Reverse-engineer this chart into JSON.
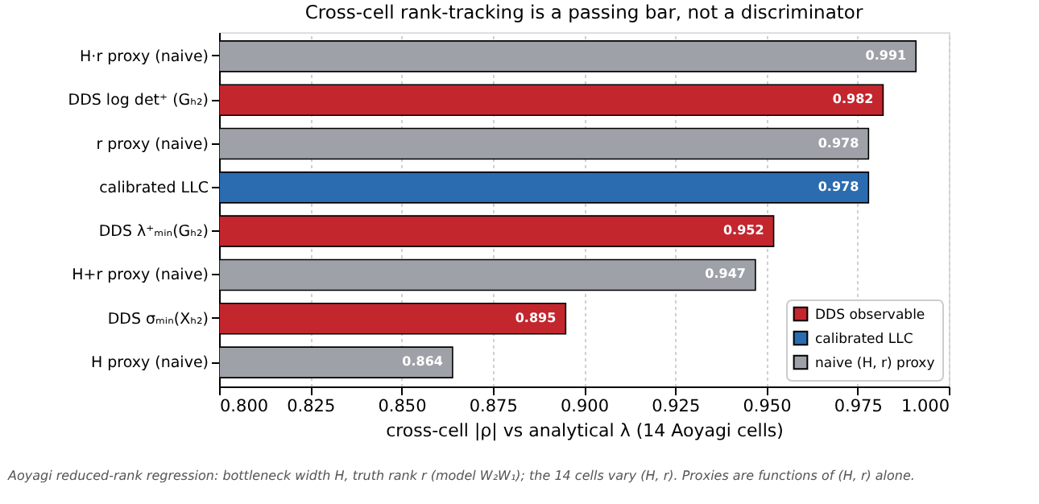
{
  "chart_data": {
    "type": "bar",
    "orientation": "horizontal",
    "title": "Cross-cell rank-tracking is a passing bar, not a discriminator",
    "xlabel": "cross-cell |ρ| vs analytical λ  (14 Aoyagi cells)",
    "categories": [
      "H·r proxy (naive)",
      "DDS log det⁺ (Gₕ₂)",
      "r proxy (naive)",
      "calibrated LLC",
      "DDS λ⁺ₘᵢₙ(Gₕ₂)",
      "H+r proxy (naive)",
      "DDS σₘᵢₙ(Xₕ₂)",
      "H proxy (naive)"
    ],
    "series": [
      {
        "name": "DDS observable",
        "color": "#c4262e",
        "values": [
          null,
          0.982,
          null,
          null,
          0.952,
          null,
          0.895,
          null
        ]
      },
      {
        "name": "calibrated LLC",
        "color": "#2b6cb0",
        "values": [
          null,
          null,
          null,
          0.978,
          null,
          null,
          null,
          null
        ]
      },
      {
        "name": "naive (H, r) proxy",
        "color": "#9ea2a8",
        "values": [
          0.991,
          null,
          0.978,
          null,
          null,
          0.947,
          null,
          0.864
        ]
      }
    ],
    "xlim": [
      0.8,
      1.0
    ],
    "xticks": [
      {
        "value": 0.8,
        "label": "0.800"
      },
      {
        "value": 0.825,
        "label": "0.825"
      },
      {
        "value": 0.85,
        "label": "0.850"
      },
      {
        "value": 0.875,
        "label": "0.875"
      },
      {
        "value": 0.9,
        "label": "0.900"
      },
      {
        "value": 0.925,
        "label": "0.925"
      },
      {
        "value": 0.95,
        "label": "0.950"
      },
      {
        "value": 0.975,
        "label": "0.975"
      },
      {
        "value": 1.0,
        "label": "1.000"
      }
    ],
    "data_labels": true,
    "grid": "x",
    "legend": "bottom right",
    "annotations": [
      "Aoyagi reduced-rank regression: bottleneck width H, truth rank r (model W₂W₁); the 14 cells vary (H, r). Proxies are functions of (H, r) alone."
    ]
  }
}
